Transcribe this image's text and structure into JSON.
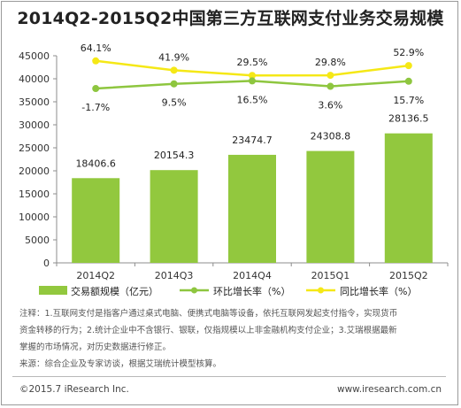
{
  "title": "2014Q2-2015Q2中国第三方互联网支付业务交易规模",
  "chart_data": {
    "type": "bar",
    "categories": [
      "2014Q2",
      "2014Q3",
      "2014Q4",
      "2015Q1",
      "2015Q2"
    ],
    "ylim": [
      0,
      45000
    ],
    "yticks": [
      0,
      5000,
      10000,
      15000,
      20000,
      25000,
      30000,
      35000,
      40000,
      45000
    ],
    "grid": false,
    "legend_position": "bottom",
    "series": [
      {
        "name": "交易额规模（亿元）",
        "kind": "bar",
        "color": "#92c83e",
        "values": [
          18406.6,
          20154.3,
          23474.7,
          24308.8,
          28136.5
        ],
        "labels": [
          "18406.6",
          "20154.3",
          "23474.7",
          "24308.8",
          "28136.5"
        ]
      },
      {
        "name": "环比增长率（%）",
        "kind": "line",
        "color": "#8ec63f",
        "values": [
          -1.7,
          9.5,
          16.5,
          3.6,
          15.7
        ],
        "labels": [
          "-1.7%",
          "9.5%",
          "16.5%",
          "3.6%",
          "15.7%"
        ]
      },
      {
        "name": "同比增长率（%）",
        "kind": "line",
        "color": "#f5e816",
        "values": [
          64.1,
          41.9,
          29.5,
          29.8,
          52.9
        ],
        "labels": [
          "64.1%",
          "41.9%",
          "29.5%",
          "29.8%",
          "52.9%"
        ]
      }
    ]
  },
  "notes": {
    "line1": "注释：1.互联网支付是指客户通过桌式电脑、便携式电脑等设备，依托互联网发起支付指令，实现货币",
    "line2": "资金转移的行为；2.统计企业中不含银行、银联，仅指规模以上非金融机构支付企业；3.艾瑞根据最新",
    "line3": "掌握的市场情况，对历史数据进行修正。",
    "line4": "来源：综合企业及专家访谈，根据艾瑞统计模型核算。"
  },
  "footer": {
    "copyright": "©2015.7 iResearch Inc.",
    "website": "www.iresearch.com.cn"
  }
}
